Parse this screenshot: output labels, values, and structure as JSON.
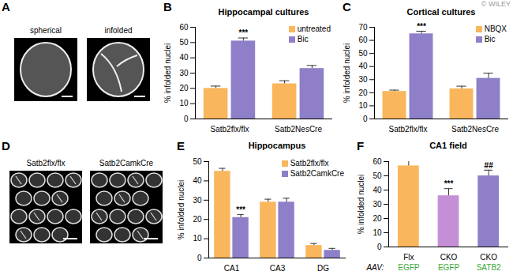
{
  "watermark": "© WILEY",
  "images": [
    {
      "panel": "A",
      "labels": [
        "spherical",
        "infolded"
      ]
    },
    {
      "panel": "D",
      "labels": [
        "Satb2flx/flx",
        "Satb2CamkCre"
      ]
    }
  ],
  "chart_data": [
    {
      "panel": "B",
      "type": "bar",
      "title": "Hippocampal cultures",
      "y_label": "% infolded nuclei",
      "categories": [
        "Satb2flx/flx",
        "Satb2NesCre"
      ],
      "series": [
        {
          "name": "untreated",
          "color": "#f9b65c",
          "values": [
            20,
            23
          ],
          "errors": [
            1.5,
            2
          ]
        },
        {
          "name": "Bic",
          "color": "#8f7fc8",
          "values": [
            51,
            33
          ],
          "errors": [
            2,
            2
          ]
        }
      ],
      "ylim": [
        0,
        60
      ],
      "yticks": [
        0,
        10,
        20,
        30,
        40,
        50,
        60
      ],
      "legend": "top-right",
      "annotations": [
        {
          "index": 0,
          "series": "Bic",
          "text": "***"
        }
      ]
    },
    {
      "panel": "C",
      "type": "bar",
      "title": "Cortical cultures",
      "y_label": "% infolded nuclei",
      "categories": [
        "Satb2flx/flx",
        "Satb2NesCre"
      ],
      "series": [
        {
          "name": "NBQX",
          "color": "#f9b65c",
          "values": [
            21,
            23
          ],
          "errors": [
            1,
            2
          ]
        },
        {
          "name": "Bic",
          "color": "#8f7fc8",
          "values": [
            65,
            31
          ],
          "errors": [
            2,
            4
          ]
        }
      ],
      "ylim": [
        0,
        70
      ],
      "yticks": [
        0,
        10,
        20,
        30,
        40,
        50,
        60,
        70
      ],
      "legend": "top-right",
      "annotations": [
        {
          "index": 0,
          "series": "Bic",
          "text": "***"
        }
      ]
    },
    {
      "panel": "E",
      "type": "bar",
      "title": "Hippocampus",
      "y_label": "% infolded nuclei",
      "categories": [
        "CA1",
        "CA3",
        "DG"
      ],
      "series": [
        {
          "name": "Satb2flx/flx",
          "color": "#f9b65c",
          "values": [
            45,
            29,
            6.5
          ],
          "errors": [
            1.5,
            1.5,
            1
          ]
        },
        {
          "name": "Satb2CamkCre",
          "color": "#8f7fc8",
          "values": [
            21,
            29,
            4
          ],
          "errors": [
            1.5,
            2,
            1
          ]
        }
      ],
      "ylim": [
        0,
        50
      ],
      "yticks": [
        0,
        10,
        20,
        30,
        40,
        50
      ],
      "legend": "top-right",
      "annotations": [
        {
          "index": 0,
          "series": "Satb2CamkCre",
          "text": "***"
        }
      ]
    },
    {
      "panel": "F",
      "type": "bar",
      "title": "CA1 field",
      "y_label": "% infolded nuclei",
      "categories": [
        "Flx",
        "CKO",
        "CKO"
      ],
      "sublabel_title": "AAV:",
      "sublabels": [
        "EGFP",
        "EGFP",
        "SATB2"
      ],
      "values": [
        57,
        36,
        50
      ],
      "errors": [
        4,
        5,
        4
      ],
      "colors": [
        "#f9b65c",
        "#c58fd6",
        "#8f7fc8"
      ],
      "ylim": [
        0,
        60
      ],
      "yticks": [
        0,
        10,
        20,
        30,
        40,
        50,
        60
      ],
      "annotations": [
        {
          "index": 1,
          "text": "***"
        },
        {
          "index": 2,
          "text": "##"
        }
      ]
    }
  ]
}
